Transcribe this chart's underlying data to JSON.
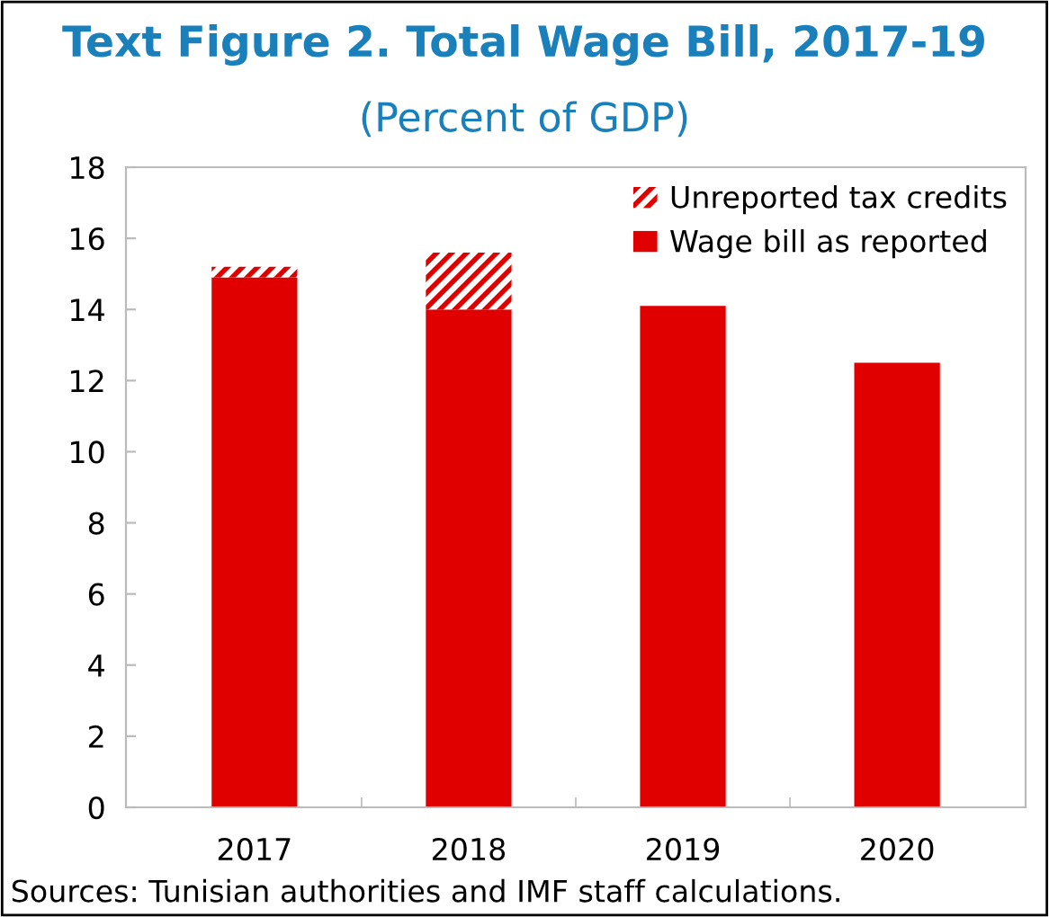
{
  "chart_data": {
    "type": "bar",
    "title": "Text Figure 2. Total Wage Bill, 2017-19",
    "subtitle": "(Percent of GDP)",
    "categories": [
      "2017",
      "2018",
      "2019",
      "2020"
    ],
    "series": [
      {
        "name": "Wage bill as reported",
        "color": "#e00000",
        "values": [
          14.9,
          14.0,
          14.1,
          12.5
        ]
      },
      {
        "name": "Unreported tax credits",
        "color": "#e00000",
        "values": [
          0.3,
          1.6,
          null,
          null
        ]
      }
    ],
    "stacked": true,
    "ylim": [
      0,
      18
    ],
    "yticks": [
      0,
      2,
      4,
      6,
      8,
      10,
      12,
      14,
      16,
      18
    ],
    "grid": false,
    "legend": "top right",
    "annotations": [
      "Sources: Tunisian authorities and IMF staff calculations."
    ]
  }
}
